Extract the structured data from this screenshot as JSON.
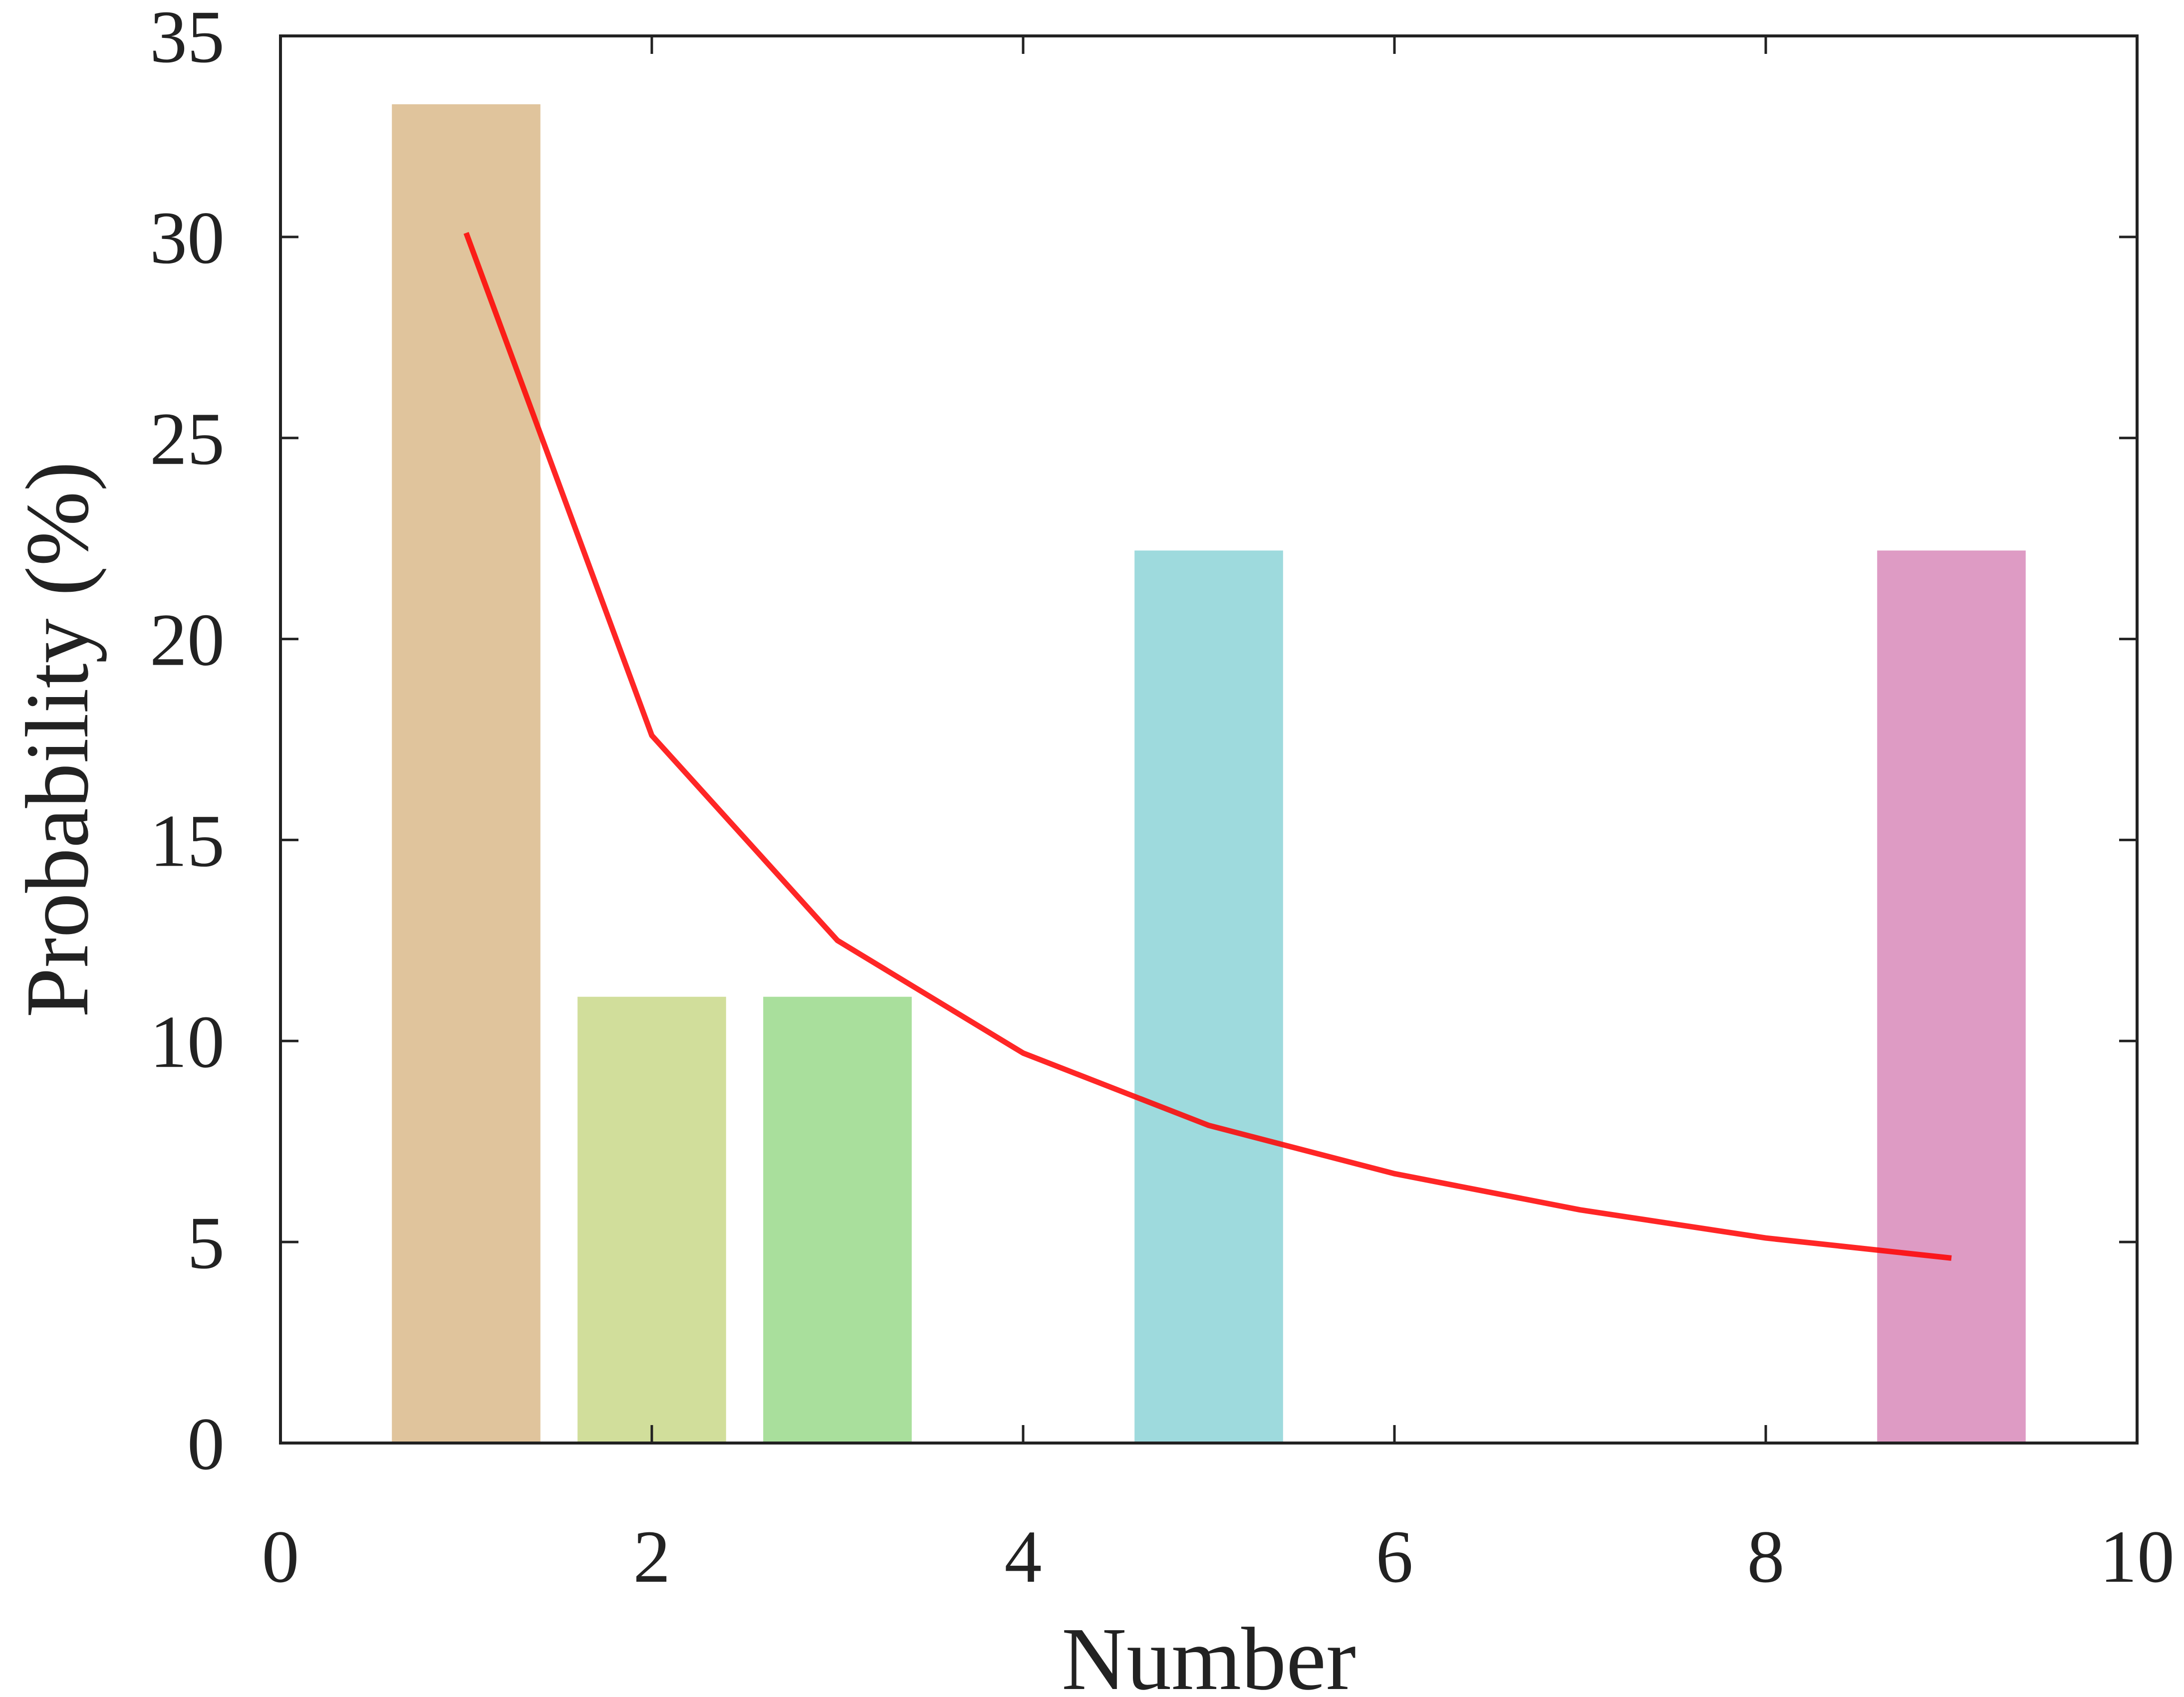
{
  "chart_data": {
    "type": "bar",
    "title": "",
    "xlabel": "Number",
    "ylabel": "Probability (%)",
    "xlim": [
      0,
      10
    ],
    "ylim": [
      0,
      35
    ],
    "xticks": [
      0,
      2,
      4,
      6,
      8,
      10
    ],
    "yticks": [
      0,
      5,
      10,
      15,
      20,
      25,
      30,
      35
    ],
    "xtick_labels": [
      "0",
      "2",
      "4",
      "6",
      "8",
      "10"
    ],
    "ytick_labels": [
      "0",
      "5",
      "10",
      "15",
      "20",
      "25",
      "30",
      "35"
    ],
    "grid": false,
    "bars": [
      {
        "x": 1,
        "value": 33.3,
        "color": "#e0c49c"
      },
      {
        "x": 2,
        "value": 11.1,
        "color": "#d1de9b"
      },
      {
        "x": 3,
        "value": 11.1,
        "color": "#a9df9c"
      },
      {
        "x": 5,
        "value": 22.2,
        "color": "#9edadd"
      },
      {
        "x": 9,
        "value": 22.2,
        "color": "#de9bc4"
      }
    ],
    "series": [
      {
        "type": "line",
        "color": "#ff0000",
        "x": [
          1,
          2,
          3,
          4,
          5,
          6,
          7,
          8,
          9
        ],
        "y": [
          30.1,
          17.6,
          12.5,
          9.7,
          7.9,
          6.7,
          5.8,
          5.1,
          4.6
        ]
      }
    ]
  }
}
